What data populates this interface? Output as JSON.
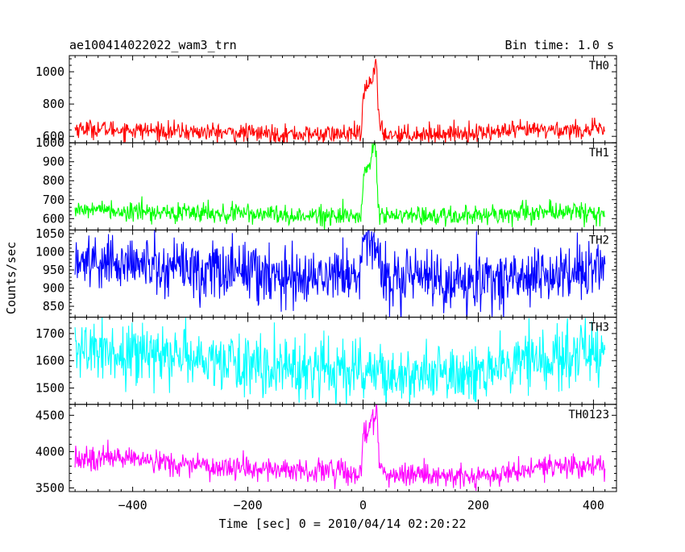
{
  "header": {
    "title": "ae100414022022_wam3_trn",
    "bin_time": "Bin time: 1.0 s"
  },
  "axes": {
    "xlabel": "Time [sec] 0 = 2010/04/14 02:20:22",
    "ylabel": "Counts/sec"
  },
  "colors": {
    "TH0": "#ff0000",
    "TH1": "#00ff00",
    "TH2": "#0000ff",
    "TH3": "#00ffff",
    "TH0123": "#ff00ff"
  },
  "chart_data": {
    "type": "line",
    "x_range": [
      -510,
      440
    ],
    "x_ticks": [
      -400,
      -200,
      0,
      200,
      400
    ],
    "x_tick_labels": [
      "−400",
      "−200",
      "0",
      "200",
      "400"
    ],
    "panels": [
      {
        "name": "TH0",
        "color": "#ff0000",
        "y_range": [
          560,
          1100
        ],
        "y_ticks": [
          600,
          800,
          1000
        ],
        "y_tick_labels": [
          "600",
          "800",
          "1000"
        ],
        "baseline": [
          [
            -500,
            650
          ],
          [
            -300,
            628
          ],
          [
            -100,
            612
          ],
          [
            0,
            615
          ],
          [
            60,
            612
          ],
          [
            200,
            622
          ],
          [
            300,
            640
          ],
          [
            420,
            640
          ]
        ],
        "noise": 28,
        "burst": [
          [
            -3,
            615
          ],
          [
            0,
            820
          ],
          [
            5,
            900
          ],
          [
            15,
            950
          ],
          [
            20,
            1030
          ],
          [
            23,
            1100
          ],
          [
            26,
            760
          ],
          [
            30,
            640
          ],
          [
            40,
            615
          ]
        ]
      },
      {
        "name": "TH1",
        "color": "#00ff00",
        "y_range": [
          540,
          1000
        ],
        "y_ticks": [
          600,
          700,
          800,
          900,
          1000
        ],
        "y_tick_labels": [
          "600",
          "700",
          "800",
          "900",
          "1000"
        ],
        "baseline": [
          [
            -500,
            650
          ],
          [
            -300,
            630
          ],
          [
            -100,
            615
          ],
          [
            0,
            615
          ],
          [
            60,
            612
          ],
          [
            200,
            620
          ],
          [
            300,
            635
          ],
          [
            420,
            635
          ]
        ],
        "noise": 26,
        "burst": [
          [
            -3,
            620
          ],
          [
            0,
            780
          ],
          [
            5,
            860
          ],
          [
            15,
            930
          ],
          [
            20,
            990
          ],
          [
            23,
            900
          ],
          [
            26,
            700
          ],
          [
            30,
            630
          ],
          [
            40,
            615
          ]
        ]
      },
      {
        "name": "TH2",
        "color": "#0000ff",
        "y_range": [
          820,
          1060
        ],
        "y_ticks": [
          850,
          900,
          950,
          1000,
          1050
        ],
        "y_tick_labels": [
          "850",
          "900",
          "950",
          "1000",
          "1050"
        ],
        "baseline": [
          [
            -500,
            975
          ],
          [
            -300,
            955
          ],
          [
            -100,
            935
          ],
          [
            0,
            940
          ],
          [
            60,
            935
          ],
          [
            200,
            915
          ],
          [
            300,
            940
          ],
          [
            420,
            945
          ]
        ],
        "noise": 40,
        "burst": [
          [
            -3,
            945
          ],
          [
            0,
            1020
          ],
          [
            10,
            1040
          ],
          [
            20,
            1030
          ],
          [
            25,
            990
          ],
          [
            35,
            950
          ]
        ]
      },
      {
        "name": "TH3",
        "color": "#00ffff",
        "y_range": [
          1440,
          1760
        ],
        "y_ticks": [
          1500,
          1600,
          1700
        ],
        "y_tick_labels": [
          "1500",
          "1600",
          "1700"
        ],
        "baseline": [
          [
            -500,
            1640
          ],
          [
            -300,
            1610
          ],
          [
            -100,
            1570
          ],
          [
            0,
            1565
          ],
          [
            60,
            1560
          ],
          [
            200,
            1545
          ],
          [
            300,
            1610
          ],
          [
            420,
            1620
          ]
        ],
        "noise": 55,
        "burst": []
      },
      {
        "name": "TH0123",
        "color": "#ff00ff",
        "y_range": [
          3450,
          4650
        ],
        "y_ticks": [
          3500,
          4000,
          4500
        ],
        "y_tick_labels": [
          "3500",
          "4000",
          "4500"
        ],
        "baseline": [
          [
            -500,
            3920
          ],
          [
            -300,
            3830
          ],
          [
            -100,
            3730
          ],
          [
            0,
            3720
          ],
          [
            60,
            3680
          ],
          [
            200,
            3630
          ],
          [
            300,
            3780
          ],
          [
            420,
            3800
          ]
        ],
        "noise": 80,
        "burst": [
          [
            -3,
            3720
          ],
          [
            0,
            4250
          ],
          [
            10,
            4350
          ],
          [
            20,
            4500
          ],
          [
            24,
            4650
          ],
          [
            27,
            4000
          ],
          [
            32,
            3750
          ],
          [
            40,
            3700
          ]
        ]
      }
    ]
  }
}
